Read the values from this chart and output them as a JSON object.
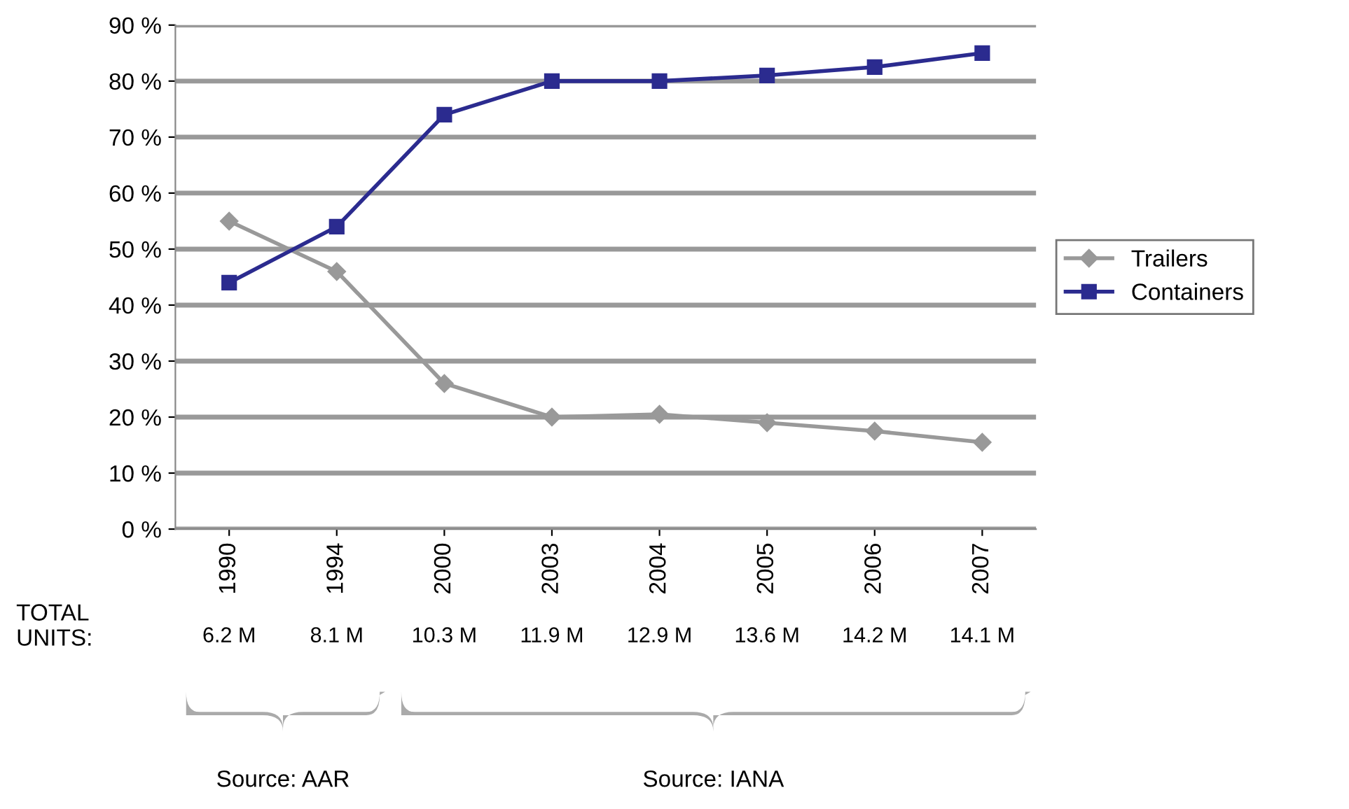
{
  "chart_data": {
    "type": "line",
    "categories": [
      "1990",
      "1994",
      "2000",
      "2003",
      "2004",
      "2005",
      "2006",
      "2007"
    ],
    "series": [
      {
        "name": "Trailers",
        "color": "#999999",
        "marker": "diamond",
        "values": [
          55,
          46,
          26,
          20,
          20.5,
          19,
          17.5,
          15.5
        ]
      },
      {
        "name": "Containers",
        "color": "#2b2b8f",
        "marker": "square",
        "values": [
          44,
          54,
          74,
          80,
          80,
          81,
          82.5,
          85
        ]
      }
    ],
    "ylim": [
      0,
      90
    ],
    "yticks": [
      {
        "value": 0,
        "label": "0 %"
      },
      {
        "value": 10,
        "label": "10 %"
      },
      {
        "value": 20,
        "label": "20 %"
      },
      {
        "value": 30,
        "label": "30 %"
      },
      {
        "value": 40,
        "label": "40 %"
      },
      {
        "value": 50,
        "label": "50 %"
      },
      {
        "value": 60,
        "label": "60 %"
      },
      {
        "value": 70,
        "label": "70 %"
      },
      {
        "value": 80,
        "label": "80 %"
      },
      {
        "value": 90,
        "label": "90 %"
      }
    ],
    "grid": "y",
    "legend": "right",
    "annotations": [
      "TOTAL\nUNITS:",
      "6.2 M",
      "8.1 M",
      "10.3 M",
      "11.9 M",
      "12.9 M",
      "13.6 M",
      "14.2 M",
      "14.1 M",
      "Source: AAR",
      "Source: IANA"
    ]
  }
}
